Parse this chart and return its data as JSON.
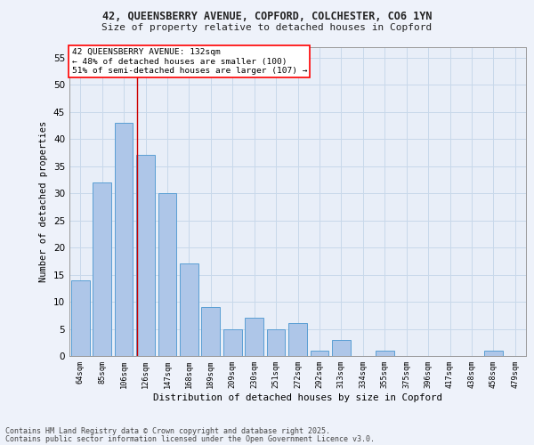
{
  "title1": "42, QUEENSBERRY AVENUE, COPFORD, COLCHESTER, CO6 1YN",
  "title2": "Size of property relative to detached houses in Copford",
  "xlabel": "Distribution of detached houses by size in Copford",
  "ylabel": "Number of detached properties",
  "categories": [
    "64sqm",
    "85sqm",
    "106sqm",
    "126sqm",
    "147sqm",
    "168sqm",
    "189sqm",
    "209sqm",
    "230sqm",
    "251sqm",
    "272sqm",
    "292sqm",
    "313sqm",
    "334sqm",
    "355sqm",
    "375sqm",
    "396sqm",
    "417sqm",
    "438sqm",
    "458sqm",
    "479sqm"
  ],
  "values": [
    14,
    32,
    43,
    37,
    30,
    17,
    9,
    5,
    7,
    5,
    6,
    1,
    3,
    0,
    1,
    0,
    0,
    0,
    0,
    1,
    0
  ],
  "bar_color": "#aec6e8",
  "bar_edge_color": "#5a9fd4",
  "grid_color": "#c8d8ea",
  "bg_color": "#e8eef8",
  "fig_bg_color": "#eef2fa",
  "annotation_box_text": "42 QUEENSBERRY AVENUE: 132sqm\n← 48% of detached houses are smaller (100)\n51% of semi-detached houses are larger (107) →",
  "vline_color": "#cc0000",
  "vline_pos": 2.62,
  "ylim": [
    0,
    57
  ],
  "yticks": [
    0,
    5,
    10,
    15,
    20,
    25,
    30,
    35,
    40,
    45,
    50,
    55
  ],
  "footer1": "Contains HM Land Registry data © Crown copyright and database right 2025.",
  "footer2": "Contains public sector information licensed under the Open Government Licence v3.0."
}
